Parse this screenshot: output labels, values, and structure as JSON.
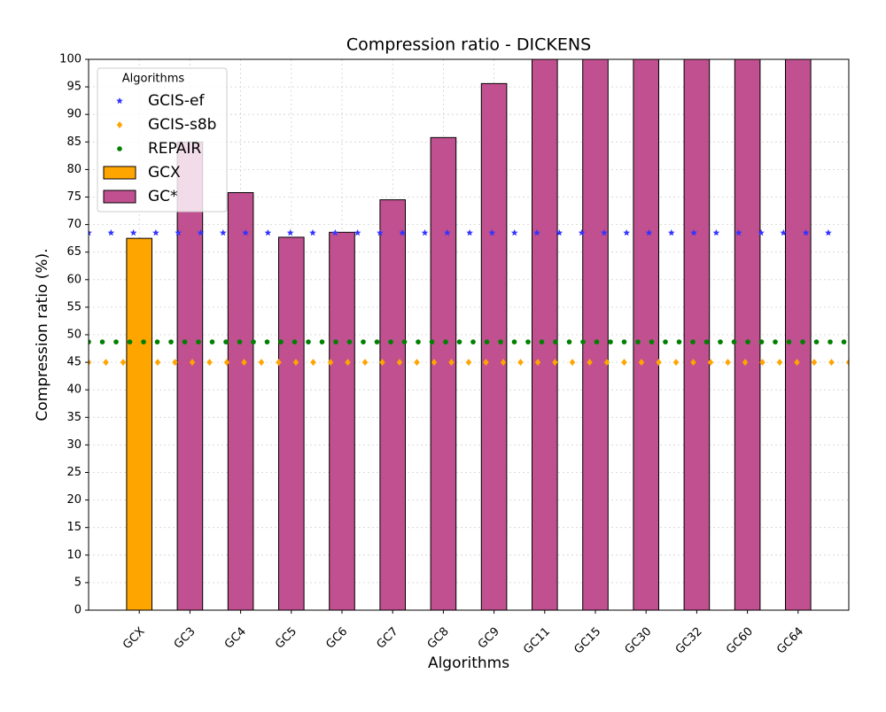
{
  "chart_data": {
    "type": "bar",
    "title": "Compression ratio -  DICKENS",
    "xlabel": "Algorithms",
    "ylabel": "Compression ratio (%).",
    "categories": [
      "GCX",
      "GC3",
      "GC4",
      "GC5",
      "GC6",
      "GC7",
      "GC8",
      "GC9",
      "GC11",
      "GC15",
      "GC30",
      "GC32",
      "GC60",
      "GC64"
    ],
    "series": [
      {
        "name": "GCIS-ef",
        "type": "line",
        "marker": "star",
        "color": "#3333ff",
        "value": 68.5
      },
      {
        "name": "GCIS-s8b",
        "type": "line",
        "marker": "diamond",
        "color": "#ffa500",
        "value": 45
      },
      {
        "name": "REPAIR",
        "type": "line",
        "marker": "dot",
        "color": "#008000",
        "value": 48.7
      },
      {
        "name": "GCX",
        "type": "bar",
        "color": "#ffa500",
        "values": [
          67.5,
          null,
          null,
          null,
          null,
          null,
          null,
          null,
          null,
          null,
          null,
          null,
          null,
          null
        ]
      },
      {
        "name": "GC*",
        "type": "bar",
        "color": "#c0508f",
        "values": [
          null,
          85,
          75.8,
          67.7,
          68.6,
          74.5,
          85.8,
          95.6,
          100,
          100,
          100,
          100,
          100,
          100
        ]
      }
    ],
    "legend_title": "Algorithms",
    "legend": "upper left",
    "ylim": [
      0,
      100
    ],
    "yticks": [
      0,
      5,
      10,
      15,
      20,
      25,
      30,
      35,
      40,
      45,
      50,
      55,
      60,
      65,
      70,
      75,
      80,
      85,
      90,
      95,
      100
    ],
    "grid": true
  }
}
